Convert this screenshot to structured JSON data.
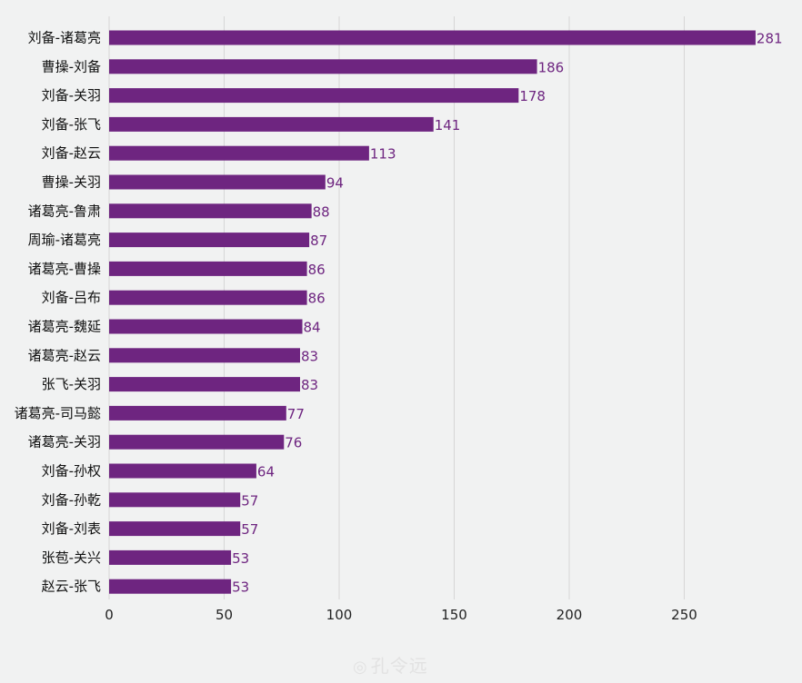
{
  "chart_data": {
    "type": "bar",
    "orientation": "horizontal",
    "categories": [
      "刘备-诸葛亮",
      "曹操-刘备",
      "刘备-关羽",
      "刘备-张飞",
      "刘备-赵云",
      "曹操-关羽",
      "诸葛亮-鲁肃",
      "周瑜-诸葛亮",
      "诸葛亮-曹操",
      "刘备-吕布",
      "诸葛亮-魏延",
      "诸葛亮-赵云",
      "张飞-关羽",
      "诸葛亮-司马懿",
      "诸葛亮-关羽",
      "刘备-孙权",
      "刘备-孙乾",
      "刘备-刘表",
      "张苞-关兴",
      "赵云-张飞"
    ],
    "values": [
      281,
      186,
      178,
      141,
      113,
      94,
      88,
      87,
      86,
      86,
      84,
      83,
      83,
      77,
      76,
      64,
      57,
      57,
      53,
      53
    ],
    "xlim": [
      0,
      300
    ],
    "xticks": [
      "0",
      "50",
      "100",
      "150",
      "200",
      "250"
    ],
    "title": "",
    "xlabel": "",
    "ylabel": "",
    "grid": "vertical",
    "legend": "none",
    "bar_color": "#6e2580",
    "label_color": "#6e2580"
  },
  "watermark": {
    "icon": "weibo-icon",
    "text": "孔令远"
  }
}
